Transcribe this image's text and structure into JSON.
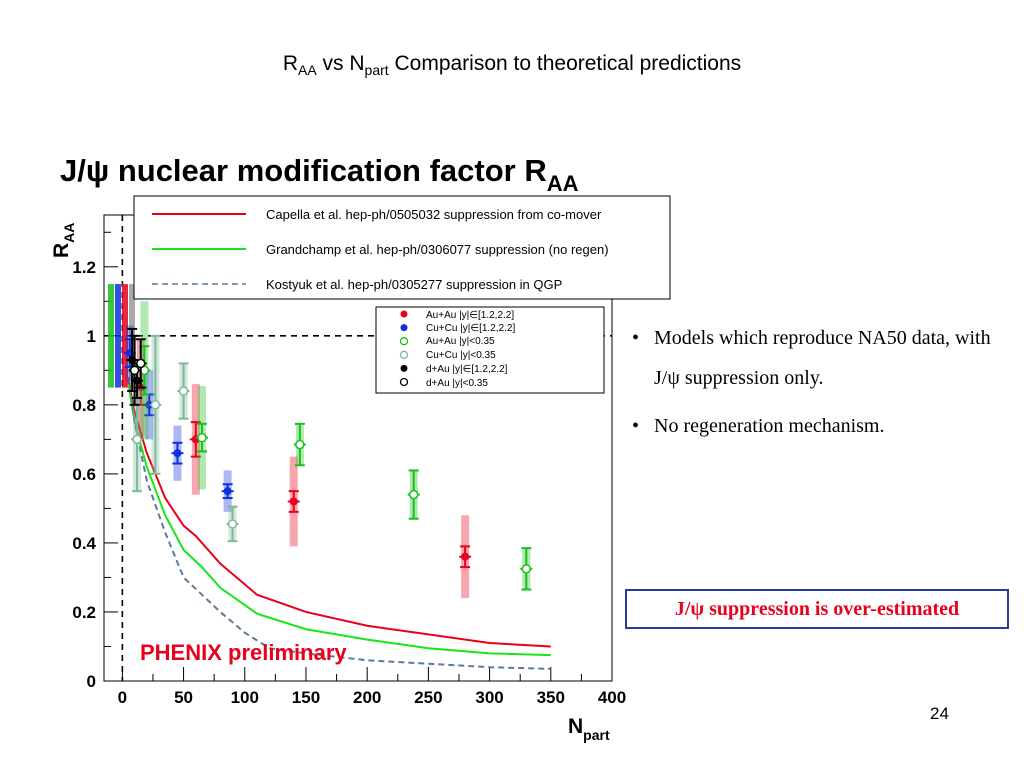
{
  "slide": {
    "title_main": "R",
    "title_sub1": "AA",
    "title_mid": " vs N",
    "title_sub2": "part",
    "title_rest": " Comparison to theoretical predictions",
    "bullets": [
      "Models which reproduce NA50 data, with J/ψ suppression only.",
      "No regeneration mechanism."
    ],
    "bullet_glyph": "•",
    "callout": "J/ψ suppression is over-estimated",
    "callout_color": "#e8001c",
    "page_number": "24"
  },
  "chart_data": {
    "type": "scatter",
    "title": "J/ψ nuclear modification factor R",
    "title_sub": "AA",
    "ylabel": "R",
    "ylabel_sub": "AA",
    "xlabel": "N",
    "xlabel_sub": "part",
    "xlim": [
      -15,
      400
    ],
    "ylim": [
      0,
      1.35
    ],
    "x_ticks": [
      "0",
      "50",
      "100",
      "150",
      "200",
      "250",
      "300",
      "350",
      "400"
    ],
    "x_tick_values": [
      0,
      50,
      100,
      150,
      200,
      250,
      300,
      350,
      400
    ],
    "y_ticks": [
      "0",
      "0.2",
      "0.4",
      "0.6",
      "0.8",
      "1",
      "1.2"
    ],
    "y_tick_values": [
      0,
      0.2,
      0.4,
      0.6,
      0.8,
      1.0,
      1.2
    ],
    "reference_line_y": 1.0,
    "reference_line_x": 0,
    "watermark": "PHENIX preliminary",
    "watermark_color": "#e8001c",
    "model_legend": [
      {
        "label": "Capella et al. hep-ph/0505032 suppression from co-mover",
        "color": "#e8001c",
        "style": "solid"
      },
      {
        "label": "Grandchamp et al. hep-ph/0306077 suppression (no regen)",
        "color": "#19e619",
        "style": "solid"
      },
      {
        "label": "Kostyuk et al. hep-ph/0305277 suppression in QGP",
        "color": "#5b7a9a",
        "style": "dashed"
      }
    ],
    "data_legend": [
      {
        "label": "Au+Au |y|∈[1.2,2.2]",
        "color": "#e8001c",
        "marker": "filled"
      },
      {
        "label": "Cu+Cu |y|∈[1.2,2.2]",
        "color": "#1030e0",
        "marker": "filled"
      },
      {
        "label": "Au+Au |y|<0.35",
        "color": "#19c019",
        "marker": "open"
      },
      {
        "label": "Cu+Cu |y|<0.35",
        "color": "#7fb89a",
        "marker": "open"
      },
      {
        "label": "d+Au |y|∈[1.2,2.2]",
        "color": "#000000",
        "marker": "filled"
      },
      {
        "label": "d+Au |y|<0.35",
        "color": "#000000",
        "marker": "open"
      }
    ],
    "models": [
      {
        "name": "Capella et al.",
        "color": "#e8001c",
        "dash": false,
        "x": [
          5,
          10,
          20,
          35,
          50,
          60,
          80,
          110,
          150,
          200,
          250,
          300,
          350
        ],
        "y": [
          0.87,
          0.78,
          0.66,
          0.53,
          0.45,
          0.42,
          0.34,
          0.25,
          0.2,
          0.16,
          0.135,
          0.11,
          0.1
        ]
      },
      {
        "name": "Grandchamp et al.",
        "color": "#19e619",
        "dash": false,
        "x": [
          5,
          10,
          20,
          35,
          50,
          65,
          80,
          110,
          150,
          200,
          250,
          300,
          350
        ],
        "y": [
          0.86,
          0.75,
          0.62,
          0.48,
          0.38,
          0.33,
          0.27,
          0.195,
          0.15,
          0.12,
          0.095,
          0.08,
          0.075
        ]
      },
      {
        "name": "Kostyuk et al.",
        "color": "#5b7a9a",
        "dash": true,
        "x": [
          5,
          10,
          20,
          35,
          50,
          65,
          80,
          100,
          120,
          150,
          200,
          250,
          300,
          350
        ],
        "y": [
          0.88,
          0.75,
          0.58,
          0.43,
          0.3,
          0.25,
          0.2,
          0.14,
          0.095,
          0.08,
          0.06,
          0.05,
          0.04,
          0.035
        ]
      }
    ],
    "series": [
      {
        "name": "Au+Au |y|∈[1.2,2.2]",
        "color": "#e8001c",
        "marker": "filled",
        "x": [
          15,
          60,
          140,
          280
        ],
        "y": [
          0.85,
          0.7,
          0.52,
          0.36
        ],
        "stat_err": [
          0.05,
          0.05,
          0.03,
          0.03
        ],
        "syst_err": [
          0.14,
          0.16,
          0.13,
          0.12
        ]
      },
      {
        "name": "Cu+Cu |y|∈[1.2,2.2]",
        "color": "#1030e0",
        "marker": "filled",
        "x": [
          6,
          22,
          45,
          86
        ],
        "y": [
          0.95,
          0.8,
          0.66,
          0.55
        ],
        "stat_err": [
          0.04,
          0.03,
          0.03,
          0.02
        ],
        "syst_err": [
          0.08,
          0.1,
          0.08,
          0.06
        ]
      },
      {
        "name": "Au+Au |y|<0.35",
        "color": "#19c019",
        "marker": "open",
        "x": [
          18,
          65,
          145,
          238,
          330
        ],
        "y": [
          0.9,
          0.705,
          0.685,
          0.54,
          0.325
        ],
        "stat_err": [
          0.07,
          0.04,
          0.06,
          0.07,
          0.06
        ],
        "syst_err": [
          0.2,
          0.15,
          0.06,
          0.07,
          0.06
        ]
      },
      {
        "name": "Cu+Cu |y|<0.35",
        "color": "#7fb89a",
        "marker": "open",
        "x": [
          12,
          27,
          50,
          90
        ],
        "y": [
          0.7,
          0.8,
          0.84,
          0.455
        ],
        "stat_err": [
          0.15,
          0.2,
          0.08,
          0.05
        ],
        "syst_err": [
          0.15,
          0.2,
          0.08,
          0.05
        ]
      },
      {
        "name": "d+Au |y|∈[1.2,2.2]",
        "color": "#000000",
        "marker": "filled",
        "x": [
          8,
          12
        ],
        "y": [
          0.93,
          0.87
        ],
        "stat_err": [
          0.09,
          0.05
        ],
        "syst_err": [
          0.0,
          0.0
        ]
      },
      {
        "name": "d+Au |y|<0.35",
        "color": "#000000",
        "marker": "open",
        "x": [
          10,
          15
        ],
        "y": [
          0.9,
          0.92
        ],
        "stat_err": [
          0.1,
          0.07
        ],
        "syst_err": [
          0.0,
          0.0
        ]
      }
    ],
    "global_syst_bars": [
      {
        "color": "#19c019"
      },
      {
        "color": "#1030e0"
      },
      {
        "color": "#e8001c"
      },
      {
        "color": "#9a9a9a"
      }
    ]
  }
}
